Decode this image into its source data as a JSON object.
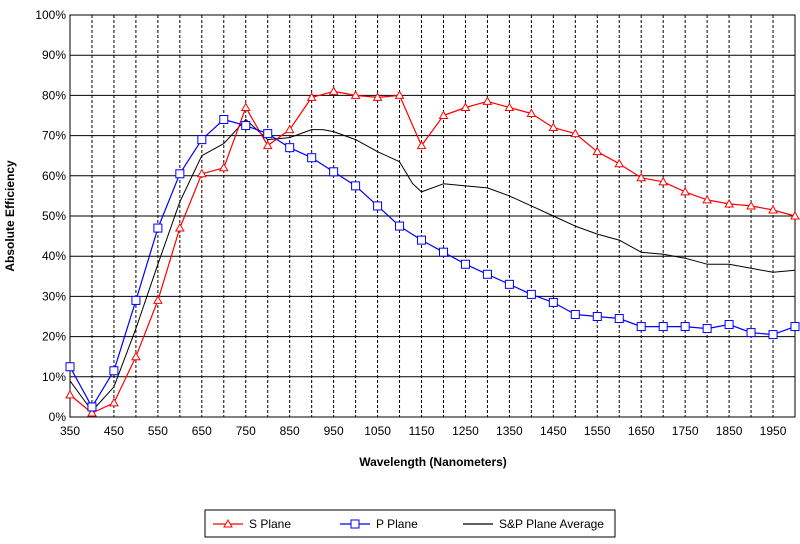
{
  "chart_data": {
    "type": "line",
    "title": "",
    "xlabel": "Wavelength (Nanometers)",
    "ylabel": "Absolute Efficiency",
    "xlim": [
      350,
      2000
    ],
    "ylim": [
      0,
      100
    ],
    "x_ticks": [
      350,
      450,
      550,
      650,
      750,
      850,
      950,
      1050,
      1150,
      1250,
      1350,
      1450,
      1550,
      1650,
      1750,
      1850,
      1950
    ],
    "x_tick_labels": [
      "350",
      "450",
      "550",
      "650",
      "750",
      "850",
      "950",
      "1050",
      "1150",
      "1250",
      "1350",
      "1450",
      "1550",
      "1650",
      "1750",
      "1850",
      "1950"
    ],
    "y_ticks": [
      0,
      10,
      20,
      30,
      40,
      50,
      60,
      70,
      80,
      90,
      100
    ],
    "y_tick_labels": [
      "0%",
      "10%",
      "20%",
      "30%",
      "40%",
      "50%",
      "60%",
      "70%",
      "80%",
      "90%",
      "100%"
    ],
    "grid": {
      "horizontal": "solid",
      "vertical": "dashed"
    },
    "legend_position": "bottom",
    "series": [
      {
        "name": "S Plane",
        "color": "#ff0000",
        "marker": "triangle",
        "x": [
          350,
          400,
          450,
          500,
          550,
          600,
          650,
          700,
          750,
          800,
          850,
          900,
          950,
          1000,
          1050,
          1100,
          1150,
          1200,
          1250,
          1300,
          1350,
          1400,
          1450,
          1500,
          1550,
          1600,
          1650,
          1700,
          1750,
          1800,
          1850,
          1900,
          1950,
          2000
        ],
        "values": [
          5.5,
          1,
          3.5,
          15,
          29,
          47,
          60.5,
          62,
          77,
          67.5,
          71.5,
          79.5,
          81,
          80,
          79.5,
          80,
          67.5,
          75,
          77,
          78.5,
          77,
          75.5,
          72,
          70.5,
          66,
          63,
          59.5,
          58.5,
          56,
          54,
          53,
          52.5,
          51.5,
          50
        ]
      },
      {
        "name": "P Plane",
        "color": "#0000ff",
        "marker": "square",
        "x": [
          350,
          400,
          450,
          500,
          550,
          600,
          650,
          700,
          750,
          800,
          850,
          900,
          950,
          1000,
          1050,
          1100,
          1150,
          1200,
          1250,
          1300,
          1350,
          1400,
          1450,
          1500,
          1550,
          1600,
          1650,
          1700,
          1750,
          1800,
          1850,
          1900,
          1950,
          2000
        ],
        "values": [
          12.5,
          2.5,
          11.5,
          29,
          47,
          60.5,
          69,
          74,
          72.5,
          70.5,
          67,
          64.5,
          61,
          57.5,
          52.5,
          47.5,
          44,
          41,
          38,
          35.5,
          33,
          30.5,
          28.5,
          25.5,
          25,
          24.5,
          22.5,
          22.5,
          22.5,
          22,
          23,
          21,
          20.5,
          22.5
        ]
      },
      {
        "name": "S&P Plane Average",
        "color": "#000000",
        "marker": "none",
        "x": [
          350,
          400,
          450,
          500,
          550,
          600,
          650,
          700,
          750,
          800,
          850,
          900,
          925,
          950,
          1000,
          1050,
          1100,
          1130,
          1150,
          1200,
          1250,
          1300,
          1350,
          1400,
          1450,
          1500,
          1550,
          1600,
          1650,
          1700,
          1750,
          1800,
          1850,
          1900,
          1950,
          2000
        ],
        "values": [
          9,
          1.5,
          7.5,
          22,
          38,
          53.5,
          65,
          68,
          74,
          69,
          69.5,
          71.5,
          71.5,
          71,
          69,
          66,
          63.5,
          58,
          56,
          58,
          57.5,
          57,
          55,
          52.5,
          50,
          47.5,
          45.5,
          44,
          41,
          40.5,
          39.5,
          38,
          38,
          37,
          36,
          36.5
        ]
      }
    ]
  }
}
